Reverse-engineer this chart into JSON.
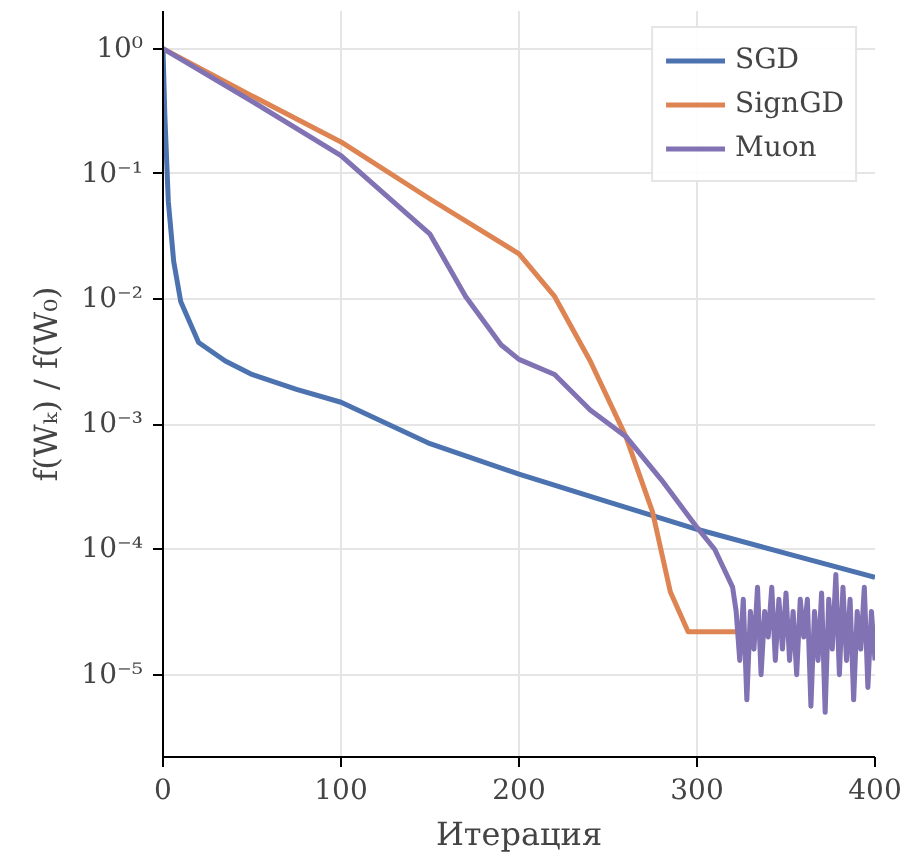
{
  "chart_data": {
    "type": "line",
    "xlabel": "Итерация",
    "ylabel": "f(Wₖ) / f(W₀)",
    "log": "y",
    "grid": true,
    "legend": "top right",
    "line_style": "solid",
    "marker": "none",
    "xlim": [
      0,
      400
    ],
    "xticks": [
      0,
      100,
      200,
      300,
      400
    ],
    "ylim": [
      2.2e-06,
      2
    ],
    "yticks": [
      {
        "value": 1,
        "label": "10⁰"
      },
      {
        "value": 0.1,
        "label": "10⁻¹"
      },
      {
        "value": 0.01,
        "label": "10⁻²"
      },
      {
        "value": 0.001,
        "label": "10⁻³"
      },
      {
        "value": 0.0001,
        "label": "10⁻⁴"
      },
      {
        "value": 1e-05,
        "label": "10⁻⁵"
      }
    ],
    "series": [
      {
        "name": "SGD",
        "color": "#4c72b0",
        "x": [
          0,
          1,
          3,
          6,
          10,
          20,
          35,
          50,
          75,
          100,
          150,
          200,
          250,
          300,
          350,
          400
        ],
        "values": [
          1,
          0.3,
          0.06,
          0.02,
          0.0095,
          0.0045,
          0.0032,
          0.0025,
          0.0019,
          0.0015,
          0.0007,
          0.0004,
          0.00024,
          0.000145,
          9.3e-05,
          6e-05
        ]
      },
      {
        "name": "SignGD",
        "color": "#dd8452",
        "x": [
          0,
          50,
          100,
          150,
          200,
          220,
          240,
          260,
          275,
          285,
          295,
          310,
          325
        ],
        "values": [
          1,
          0.42,
          0.18,
          0.063,
          0.023,
          0.0105,
          0.0032,
          0.0008,
          0.0002,
          4.6e-05,
          2.2e-05,
          2.2e-05,
          2.2e-05
        ]
      },
      {
        "name": "Muon",
        "color": "#8172b3",
        "x": [
          0,
          50,
          100,
          150,
          170,
          190,
          200,
          220,
          240,
          260,
          280,
          300,
          310,
          320,
          322,
          324,
          326,
          328,
          330,
          332,
          334,
          336,
          338,
          340,
          342,
          344,
          346,
          348,
          350,
          352,
          354,
          356,
          358,
          360,
          362,
          364,
          366,
          368,
          370,
          372,
          374,
          376,
          378,
          380,
          382,
          384,
          386,
          388,
          390,
          392,
          394,
          396,
          398,
          400
        ],
        "values": [
          1,
          0.38,
          0.14,
          0.033,
          0.0105,
          0.0043,
          0.0033,
          0.0025,
          0.0013,
          0.0008,
          0.00036,
          0.00015,
          0.0001,
          5e-05,
          3.2e-05,
          1.3e-05,
          4e-05,
          6.3e-06,
          3.2e-05,
          1.6e-05,
          5e-05,
          1e-05,
          3.2e-05,
          2e-05,
          5e-05,
          1.3e-05,
          4e-05,
          1.6e-05,
          4.5e-05,
          1.3e-05,
          3.2e-05,
          1e-05,
          4e-05,
          2e-05,
          4e-05,
          5.6e-06,
          3.2e-05,
          1.3e-05,
          4.5e-05,
          5e-06,
          4e-05,
          1.6e-05,
          6.3e-05,
          1e-05,
          5e-05,
          1.3e-05,
          4e-05,
          6.3e-06,
          3.2e-05,
          1.6e-05,
          5e-05,
          7.9e-06,
          3.2e-05,
          1.3e-05
        ]
      }
    ]
  }
}
